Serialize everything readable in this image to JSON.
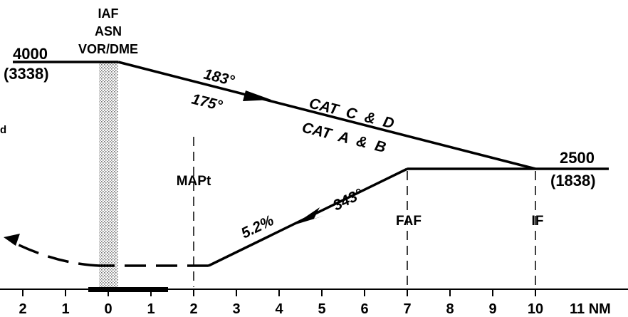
{
  "fix_iaf": {
    "line1": "IAF",
    "line2": "ASN",
    "line3": "VOR/DME"
  },
  "initial_altitude": {
    "msl": "4000",
    "hat": "(3338)"
  },
  "intermediate_altitude": {
    "msl": "2500",
    "hat": "(1838)"
  },
  "inbound_courses": {
    "cat_cd": "183°",
    "cat_ab": "175°"
  },
  "category_labels": {
    "cd": "CAT  C  &  D",
    "ab": "CAT  A  &  B"
  },
  "final_course": "343°",
  "descent_gradient": "5.2%",
  "fix_labels": {
    "mapt": "MAPt",
    "faf": "FAF",
    "if": "IF"
  },
  "left_edge_fragment": "d",
  "nm_scale": {
    "ticks": [
      "2",
      "1",
      "0",
      "1",
      "2",
      "3",
      "4",
      "5",
      "6",
      "7",
      "8",
      "9",
      "10",
      "11 NM"
    ]
  },
  "colors": {
    "ink": "#000000",
    "stipple": "#8a8a8a",
    "background": "#ffffff"
  }
}
